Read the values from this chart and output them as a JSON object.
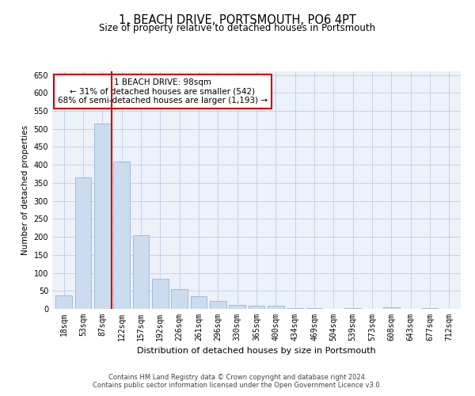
{
  "title": "1, BEACH DRIVE, PORTSMOUTH, PO6 4PT",
  "subtitle": "Size of property relative to detached houses in Portsmouth",
  "xlabel": "Distribution of detached houses by size in Portsmouth",
  "ylabel": "Number of detached properties",
  "categories": [
    "18sqm",
    "53sqm",
    "87sqm",
    "122sqm",
    "157sqm",
    "192sqm",
    "226sqm",
    "261sqm",
    "296sqm",
    "330sqm",
    "365sqm",
    "400sqm",
    "434sqm",
    "469sqm",
    "504sqm",
    "539sqm",
    "573sqm",
    "608sqm",
    "643sqm",
    "677sqm",
    "712sqm"
  ],
  "values": [
    37,
    365,
    515,
    410,
    205,
    83,
    55,
    35,
    22,
    12,
    8,
    8,
    3,
    3,
    0,
    3,
    0,
    5,
    0,
    3,
    0
  ],
  "bar_color": "#ccdcf0",
  "bar_edge_color": "#a0bcd8",
  "grid_color": "#c8d0e8",
  "background_color": "#ffffff",
  "plot_bg_color": "#edf1fa",
  "red_line_x": 2.5,
  "red_line_color": "#cc0000",
  "annotation_text": "1 BEACH DRIVE: 98sqm\n← 31% of detached houses are smaller (542)\n68% of semi-detached houses are larger (1,193) →",
  "annotation_box_color": "#ffffff",
  "annotation_box_edge": "#cc0000",
  "ylim": [
    0,
    660
  ],
  "yticks": [
    0,
    50,
    100,
    150,
    200,
    250,
    300,
    350,
    400,
    450,
    500,
    550,
    600,
    650
  ],
  "footer1": "Contains HM Land Registry data © Crown copyright and database right 2024.",
  "footer2": "Contains public sector information licensed under the Open Government Licence v3.0.",
  "title_fontsize": 10.5,
  "subtitle_fontsize": 8.5,
  "tick_fontsize": 7,
  "ylabel_fontsize": 7.5,
  "xlabel_fontsize": 8,
  "footer_fontsize": 6,
  "ann_fontsize": 7.5
}
